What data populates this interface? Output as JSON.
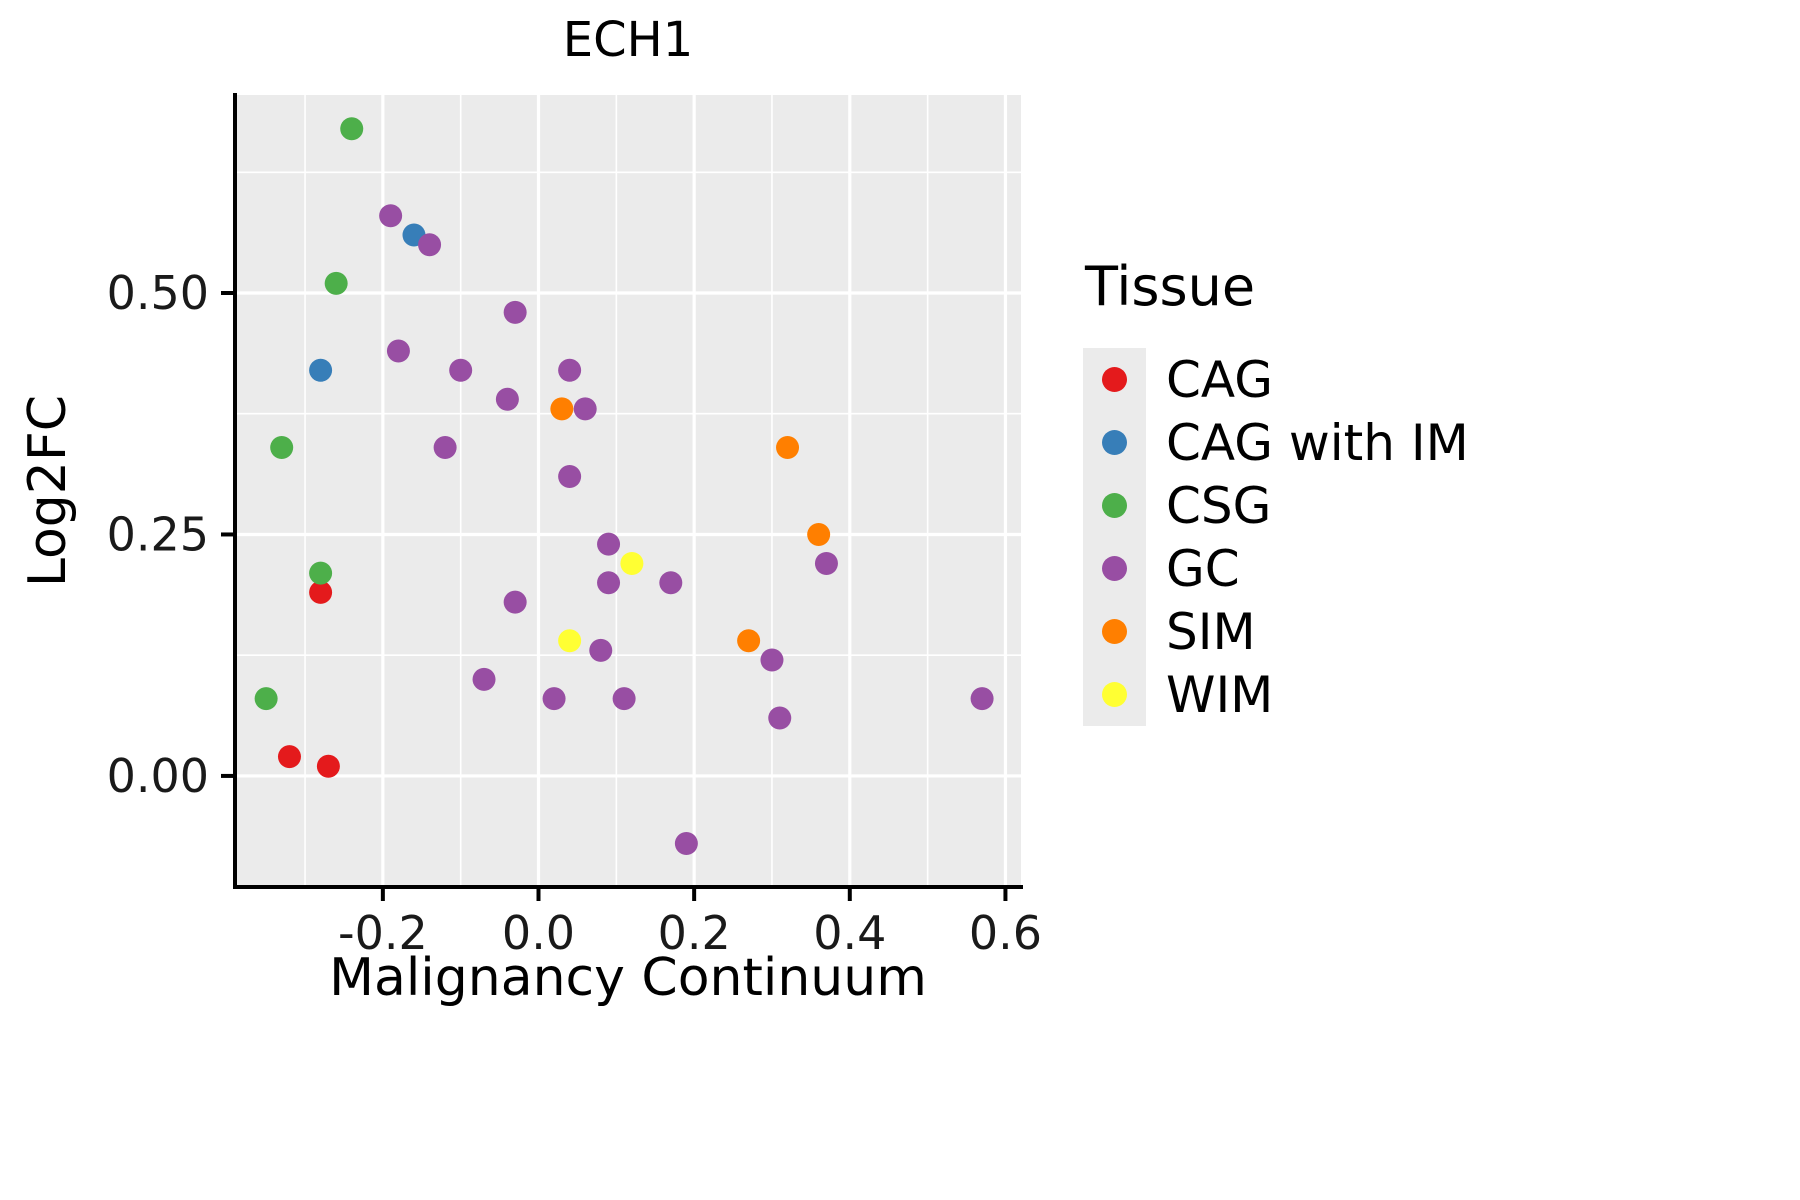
{
  "title": "ECH1",
  "axes": {
    "xlabel": "Malignancy Continuum",
    "ylabel": "Log2FC"
  },
  "legend": {
    "title": "Tissue",
    "key_background": "#EBEBEB",
    "items": [
      {
        "label": "CAG",
        "color": "#E41A1C"
      },
      {
        "label": "CAG with IM",
        "color": "#377EB8"
      },
      {
        "label": "CSG",
        "color": "#4DAF4A"
      },
      {
        "label": "GC",
        "color": "#984EA3"
      },
      {
        "label": "SIM",
        "color": "#FF7F00"
      },
      {
        "label": "WIM",
        "color": "#FFFF33"
      }
    ]
  },
  "chart_data": {
    "type": "scatter",
    "title": "ECH1",
    "xlabel": "Malignancy Continuum",
    "ylabel": "Log2FC",
    "xlim": [
      -0.39,
      0.62
    ],
    "ylim": [
      -0.115,
      0.705
    ],
    "grid": true,
    "panel_color": "#EBEBEB",
    "grid_color": "#FFFFFF",
    "axis_color": "#000000",
    "tick_label_color": "#1a1a1a",
    "legend_title": "Tissue",
    "legend_position": "right",
    "x_ticks": {
      "major": [
        {
          "v": -0.2,
          "label": "-0.2"
        },
        {
          "v": 0.0,
          "label": "0.0"
        },
        {
          "v": 0.2,
          "label": "0.2"
        },
        {
          "v": 0.4,
          "label": "0.4"
        },
        {
          "v": 0.6,
          "label": "0.6"
        }
      ],
      "minor": [
        -0.3,
        -0.1,
        0.1,
        0.3,
        0.5
      ]
    },
    "y_ticks": {
      "major": [
        {
          "v": 0.0,
          "label": "0.00"
        },
        {
          "v": 0.25,
          "label": "0.25"
        },
        {
          "v": 0.5,
          "label": "0.50"
        }
      ],
      "minor": [
        0.125,
        0.375,
        0.625
      ]
    },
    "series": [
      {
        "name": "CAG",
        "color": "#E41A1C",
        "points": [
          [
            -0.28,
            0.19
          ],
          [
            -0.32,
            0.02
          ],
          [
            -0.27,
            0.01
          ]
        ]
      },
      {
        "name": "CAG with IM",
        "color": "#377EB8",
        "points": [
          [
            -0.16,
            0.56
          ],
          [
            -0.28,
            0.42
          ]
        ]
      },
      {
        "name": "CSG",
        "color": "#4DAF4A",
        "points": [
          [
            -0.24,
            0.67
          ],
          [
            -0.26,
            0.51
          ],
          [
            -0.33,
            0.34
          ],
          [
            -0.28,
            0.21
          ],
          [
            -0.35,
            0.08
          ]
        ]
      },
      {
        "name": "GC",
        "color": "#984EA3",
        "points": [
          [
            -0.19,
            0.58
          ],
          [
            -0.14,
            0.55
          ],
          [
            -0.18,
            0.44
          ],
          [
            -0.1,
            0.42
          ],
          [
            -0.03,
            0.48
          ],
          [
            -0.04,
            0.39
          ],
          [
            0.04,
            0.42
          ],
          [
            0.06,
            0.38
          ],
          [
            -0.12,
            0.34
          ],
          [
            0.04,
            0.31
          ],
          [
            0.09,
            0.24
          ],
          [
            0.37,
            0.22
          ],
          [
            0.09,
            0.2
          ],
          [
            0.17,
            0.2
          ],
          [
            -0.03,
            0.18
          ],
          [
            0.08,
            0.13
          ],
          [
            0.3,
            0.12
          ],
          [
            -0.07,
            0.1
          ],
          [
            0.02,
            0.08
          ],
          [
            0.11,
            0.08
          ],
          [
            0.57,
            0.08
          ],
          [
            0.31,
            0.06
          ],
          [
            0.19,
            -0.07
          ]
        ]
      },
      {
        "name": "SIM",
        "color": "#FF7F00",
        "points": [
          [
            0.03,
            0.38
          ],
          [
            0.32,
            0.34
          ],
          [
            0.36,
            0.25
          ],
          [
            0.27,
            0.14
          ]
        ]
      },
      {
        "name": "WIM",
        "color": "#FFFF33",
        "points": [
          [
            0.12,
            0.22
          ],
          [
            0.04,
            0.14
          ]
        ]
      }
    ]
  }
}
